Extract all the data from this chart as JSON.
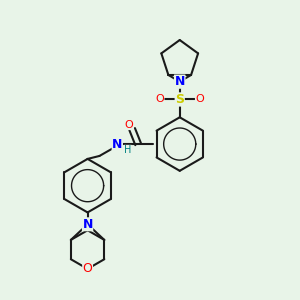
{
  "bg_color": "#e8f4e8",
  "bond_color": "#1a1a1a",
  "atom_colors": {
    "N": "#0000ff",
    "O": "#ff0000",
    "S": "#cccc00",
    "H": "#008080",
    "C": "#1a1a1a"
  },
  "figsize": [
    3.0,
    3.0
  ],
  "dpi": 100
}
